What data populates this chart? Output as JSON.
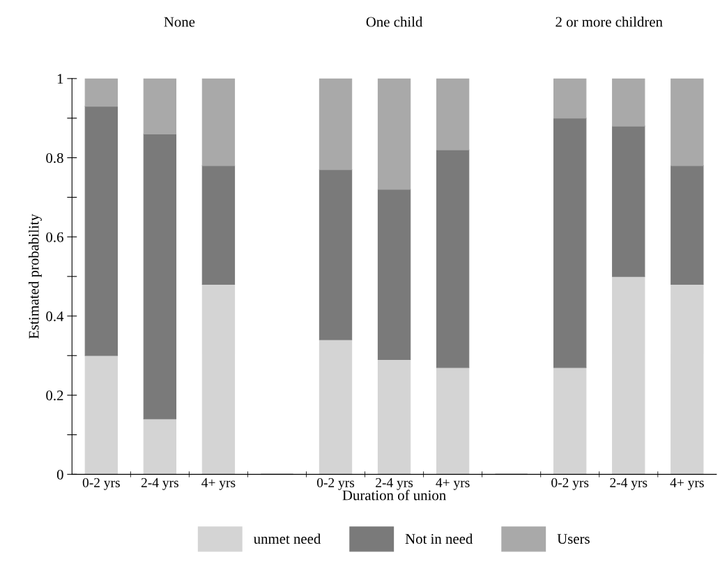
{
  "chart_data": {
    "type": "bar",
    "stacked": true,
    "categories": [
      "0-2 yrs",
      "2-4 yrs",
      "4+ yrs",
      null,
      "0-2 yrs",
      "2-4 yrs",
      "4+ yrs",
      null,
      "0-2 yrs",
      "2-4 yrs",
      "4+ yrs"
    ],
    "series": [
      {
        "name": "unmet need",
        "color": "#d4d4d4",
        "values": [
          0.3,
          0.14,
          0.48,
          0,
          0.34,
          0.29,
          0.27,
          0,
          0.27,
          0.5,
          0.48
        ]
      },
      {
        "name": "Not in need",
        "color": "#7a7a7a",
        "values": [
          0.63,
          0.72,
          0.3,
          0,
          0.43,
          0.43,
          0.55,
          0,
          0.63,
          0.38,
          0.3
        ]
      },
      {
        "name": "Users",
        "color": "#a9a9a9",
        "values": [
          0.07,
          0.14,
          0.22,
          0,
          0.23,
          0.28,
          0.18,
          0,
          0.1,
          0.12,
          0.22
        ]
      }
    ],
    "xlabel": "Duration of union",
    "ylabel": "Estimated probability",
    "ylim": [
      0,
      1
    ],
    "yticks": [
      0,
      {
        "value": 0.1,
        "label": null
      },
      0.2,
      {
        "value": 0.3,
        "label": null
      },
      0.4,
      {
        "value": 0.5,
        "label": null
      },
      0.6,
      {
        "value": 0.7,
        "label": null
      },
      0.8,
      {
        "value": 0.9,
        "label": null
      },
      1
    ],
    "annotations": [
      "None",
      "One child",
      "2 or more children"
    ],
    "legend": "bottom",
    "grid": false
  }
}
